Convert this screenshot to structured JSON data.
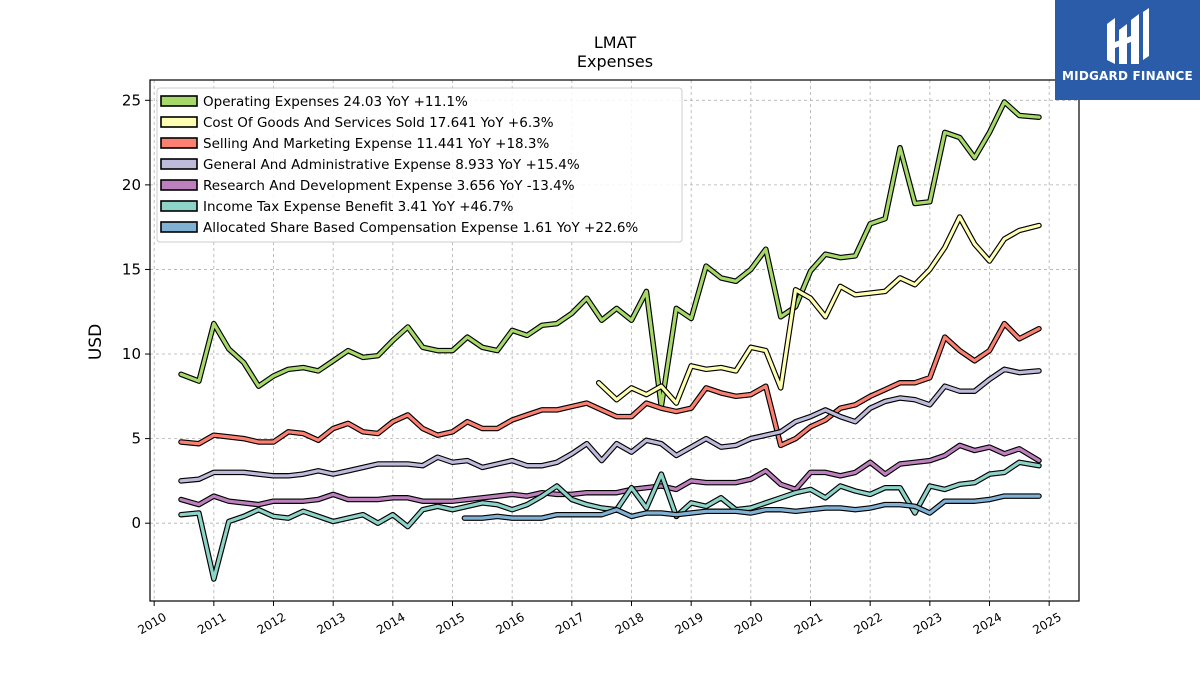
{
  "chart_data": {
    "type": "line",
    "title": "LMAT",
    "subtitle": "Expenses",
    "ylabel": "USD",
    "xlabel": "",
    "xlim": [
      2009.93,
      2025.5
    ],
    "ylim": [
      -4.6,
      26.2
    ],
    "x_ticks": [
      "2010",
      "2011",
      "2012",
      "2013",
      "2014",
      "2015",
      "2016",
      "2017",
      "2018",
      "2019",
      "2020",
      "2021",
      "2022",
      "2023",
      "2024",
      "2025"
    ],
    "y_ticks": [
      0,
      5,
      10,
      15,
      20,
      25
    ],
    "grid": true,
    "legend_position": "top-left",
    "series": [
      {
        "name": "Operating Expenses  24.03 YoY +11.1%",
        "color": "#a6d96a",
        "x": [
          2010.45,
          2010.75,
          2011.0,
          2011.25,
          2011.5,
          2011.75,
          2012.0,
          2012.25,
          2012.5,
          2012.75,
          2013.0,
          2013.25,
          2013.5,
          2013.75,
          2014.0,
          2014.25,
          2014.5,
          2014.75,
          2015.0,
          2015.25,
          2015.5,
          2015.75,
          2016.0,
          2016.25,
          2016.5,
          2016.75,
          2017.0,
          2017.25,
          2017.5,
          2017.75,
          2018.0,
          2018.25,
          2018.5,
          2018.75,
          2019.0,
          2019.25,
          2019.5,
          2019.75,
          2020.0,
          2020.25,
          2020.5,
          2020.75,
          2021.0,
          2021.25,
          2021.5,
          2021.75,
          2022.0,
          2022.25,
          2022.5,
          2022.75,
          2023.0,
          2023.25,
          2023.5,
          2023.75,
          2024.0,
          2024.25,
          2024.5,
          2024.83
        ],
        "values": [
          8.8,
          8.4,
          11.8,
          10.3,
          9.5,
          8.1,
          8.7,
          9.1,
          9.2,
          9.0,
          9.6,
          10.2,
          9.8,
          9.9,
          10.8,
          11.6,
          10.4,
          10.2,
          10.2,
          11.0,
          10.4,
          10.2,
          11.4,
          11.1,
          11.7,
          11.8,
          12.4,
          13.3,
          12.0,
          12.7,
          12.0,
          13.7,
          6.9,
          12.7,
          12.1,
          15.2,
          14.5,
          14.3,
          15.0,
          16.2,
          12.2,
          12.8,
          14.9,
          15.9,
          15.7,
          15.8,
          17.7,
          18.0,
          22.2,
          18.9,
          19.0,
          23.1,
          22.8,
          21.6,
          23.1,
          24.9,
          24.1,
          24.0
        ]
      },
      {
        "name": "Cost Of Goods And Services Sold  17.641 YoY +6.3%",
        "color": "#ffffb3",
        "x": [
          2017.45,
          2017.75,
          2018.0,
          2018.25,
          2018.5,
          2018.75,
          2019.0,
          2019.25,
          2019.5,
          2019.75,
          2020.0,
          2020.25,
          2020.5,
          2020.75,
          2021.0,
          2021.25,
          2021.5,
          2021.75,
          2022.0,
          2022.25,
          2022.5,
          2022.75,
          2023.0,
          2023.25,
          2023.5,
          2023.75,
          2024.0,
          2024.25,
          2024.5,
          2024.83
        ],
        "values": [
          8.3,
          7.3,
          8.0,
          7.6,
          8.1,
          7.1,
          9.3,
          9.1,
          9.2,
          9.0,
          10.4,
          10.2,
          8.0,
          13.8,
          13.3,
          12.2,
          14.0,
          13.5,
          13.6,
          13.7,
          14.5,
          14.1,
          15.0,
          16.3,
          18.1,
          16.5,
          15.5,
          16.8,
          17.3,
          17.6
        ]
      },
      {
        "name": "Selling And Marketing Expense  11.441 YoY +18.3%",
        "color": "#fb8072",
        "x": [
          2010.45,
          2010.75,
          2011.0,
          2011.25,
          2011.5,
          2011.75,
          2012.0,
          2012.25,
          2012.5,
          2012.75,
          2013.0,
          2013.25,
          2013.5,
          2013.75,
          2014.0,
          2014.25,
          2014.5,
          2014.75,
          2015.0,
          2015.25,
          2015.5,
          2015.75,
          2016.0,
          2016.25,
          2016.5,
          2016.75,
          2017.0,
          2017.25,
          2017.5,
          2017.75,
          2018.0,
          2018.25,
          2018.5,
          2018.75,
          2019.0,
          2019.25,
          2019.5,
          2019.75,
          2020.0,
          2020.25,
          2020.5,
          2020.75,
          2021.0,
          2021.25,
          2021.5,
          2021.75,
          2022.0,
          2022.25,
          2022.5,
          2022.75,
          2023.0,
          2023.25,
          2023.5,
          2023.75,
          2024.0,
          2024.25,
          2024.5,
          2024.83
        ],
        "values": [
          4.8,
          4.7,
          5.2,
          5.1,
          5.0,
          4.8,
          4.8,
          5.4,
          5.3,
          4.9,
          5.6,
          5.9,
          5.4,
          5.3,
          6.0,
          6.4,
          5.6,
          5.2,
          5.4,
          6.0,
          5.6,
          5.6,
          6.1,
          6.4,
          6.7,
          6.7,
          6.9,
          7.1,
          6.7,
          6.3,
          6.3,
          7.1,
          6.8,
          6.6,
          6.8,
          8.0,
          7.7,
          7.5,
          7.6,
          8.1,
          4.6,
          5.0,
          5.7,
          6.1,
          6.8,
          7.0,
          7.5,
          7.9,
          8.3,
          8.3,
          8.6,
          11.0,
          10.2,
          9.6,
          10.2,
          11.8,
          10.9,
          11.5
        ]
      },
      {
        "name": "General And Administrative Expense  8.933 YoY +15.4%",
        "color": "#bebada",
        "x": [
          2010.45,
          2010.75,
          2011.0,
          2011.25,
          2011.5,
          2011.75,
          2012.0,
          2012.25,
          2012.5,
          2012.75,
          2013.0,
          2013.25,
          2013.5,
          2013.75,
          2014.0,
          2014.25,
          2014.5,
          2014.75,
          2015.0,
          2015.25,
          2015.5,
          2015.75,
          2016.0,
          2016.25,
          2016.5,
          2016.75,
          2017.0,
          2017.25,
          2017.5,
          2017.75,
          2018.0,
          2018.25,
          2018.5,
          2018.75,
          2019.0,
          2019.25,
          2019.5,
          2019.75,
          2020.0,
          2020.25,
          2020.5,
          2020.75,
          2021.0,
          2021.25,
          2021.5,
          2021.75,
          2022.0,
          2022.25,
          2022.5,
          2022.75,
          2023.0,
          2023.25,
          2023.5,
          2023.75,
          2024.0,
          2024.25,
          2024.5,
          2024.83
        ],
        "values": [
          2.5,
          2.6,
          3.0,
          3.0,
          3.0,
          2.9,
          2.8,
          2.8,
          2.9,
          3.1,
          2.9,
          3.1,
          3.3,
          3.5,
          3.5,
          3.5,
          3.4,
          3.9,
          3.6,
          3.7,
          3.3,
          3.5,
          3.7,
          3.4,
          3.4,
          3.6,
          4.1,
          4.7,
          3.7,
          4.7,
          4.2,
          4.9,
          4.7,
          4.0,
          4.5,
          5.0,
          4.5,
          4.6,
          5.0,
          5.2,
          5.4,
          6.0,
          6.3,
          6.7,
          6.3,
          6.0,
          6.8,
          7.2,
          7.4,
          7.3,
          7.0,
          8.1,
          7.8,
          7.8,
          8.5,
          9.1,
          8.9,
          9.0
        ]
      },
      {
        "name": "Research And Development Expense  3.656 YoY -13.4%",
        "color": "#bc80bd",
        "x": [
          2010.45,
          2010.75,
          2011.0,
          2011.25,
          2011.5,
          2011.75,
          2012.0,
          2012.25,
          2012.5,
          2012.75,
          2013.0,
          2013.25,
          2013.5,
          2013.75,
          2014.0,
          2014.25,
          2014.5,
          2014.75,
          2015.0,
          2015.25,
          2015.5,
          2015.75,
          2016.0,
          2016.25,
          2016.5,
          2016.75,
          2017.0,
          2017.25,
          2017.5,
          2017.75,
          2018.0,
          2018.25,
          2018.5,
          2018.75,
          2019.0,
          2019.25,
          2019.5,
          2019.75,
          2020.0,
          2020.25,
          2020.5,
          2020.75,
          2021.0,
          2021.25,
          2021.5,
          2021.75,
          2022.0,
          2022.25,
          2022.5,
          2022.75,
          2023.0,
          2023.25,
          2023.5,
          2023.75,
          2024.0,
          2024.25,
          2024.5,
          2024.83
        ],
        "values": [
          1.4,
          1.1,
          1.6,
          1.3,
          1.2,
          1.1,
          1.3,
          1.3,
          1.3,
          1.4,
          1.7,
          1.4,
          1.4,
          1.4,
          1.5,
          1.5,
          1.3,
          1.3,
          1.3,
          1.4,
          1.5,
          1.6,
          1.7,
          1.6,
          1.8,
          1.7,
          1.7,
          1.8,
          1.8,
          1.8,
          2.0,
          2.1,
          2.2,
          2.0,
          2.5,
          2.4,
          2.4,
          2.4,
          2.6,
          3.1,
          2.3,
          2.0,
          3.0,
          3.0,
          2.8,
          3.0,
          3.6,
          2.9,
          3.5,
          3.6,
          3.7,
          4.0,
          4.6,
          4.3,
          4.5,
          4.1,
          4.4,
          3.7
        ]
      },
      {
        "name": "Income Tax Expense Benefit  3.41 YoY +46.7%",
        "color": "#8dd3c7",
        "x": [
          2010.45,
          2010.75,
          2011.0,
          2011.25,
          2011.5,
          2011.75,
          2012.0,
          2012.25,
          2012.5,
          2012.75,
          2013.0,
          2013.25,
          2013.5,
          2013.75,
          2014.0,
          2014.25,
          2014.5,
          2014.75,
          2015.0,
          2015.25,
          2015.5,
          2015.75,
          2016.0,
          2016.25,
          2016.5,
          2016.75,
          2017.0,
          2017.25,
          2017.5,
          2017.75,
          2018.0,
          2018.25,
          2018.5,
          2018.75,
          2019.0,
          2019.25,
          2019.5,
          2019.75,
          2020.0,
          2020.25,
          2020.5,
          2020.75,
          2021.0,
          2021.25,
          2021.5,
          2021.75,
          2022.0,
          2022.25,
          2022.5,
          2022.75,
          2023.0,
          2023.25,
          2023.5,
          2023.75,
          2024.0,
          2024.25,
          2024.5,
          2024.83
        ],
        "values": [
          0.5,
          0.6,
          -3.3,
          0.1,
          0.4,
          0.8,
          0.4,
          0.3,
          0.7,
          0.4,
          0.1,
          0.3,
          0.5,
          0.0,
          0.5,
          -0.2,
          0.8,
          1.0,
          0.8,
          1.0,
          1.2,
          1.1,
          0.8,
          1.1,
          1.6,
          2.2,
          1.4,
          1.1,
          0.9,
          0.8,
          2.1,
          0.9,
          2.9,
          0.4,
          1.2,
          1.0,
          1.5,
          0.8,
          0.9,
          1.2,
          1.5,
          1.8,
          2.0,
          1.5,
          2.2,
          1.9,
          1.7,
          2.1,
          2.1,
          0.6,
          2.2,
          2.0,
          2.3,
          2.4,
          2.9,
          3.0,
          3.6,
          3.4
        ]
      },
      {
        "name": "Allocated Share Based Compensation Expense  1.61 YoY +22.6%",
        "color": "#80b1d3",
        "x": [
          2015.2,
          2015.5,
          2015.75,
          2016.0,
          2016.25,
          2016.5,
          2016.75,
          2017.0,
          2017.25,
          2017.5,
          2017.75,
          2018.0,
          2018.25,
          2018.5,
          2018.75,
          2019.0,
          2019.25,
          2019.5,
          2019.75,
          2020.0,
          2020.25,
          2020.5,
          2020.75,
          2021.0,
          2021.25,
          2021.5,
          2021.75,
          2022.0,
          2022.25,
          2022.5,
          2022.75,
          2023.0,
          2023.25,
          2023.5,
          2023.75,
          2024.0,
          2024.25,
          2024.5,
          2024.83
        ],
        "values": [
          0.3,
          0.3,
          0.4,
          0.3,
          0.3,
          0.3,
          0.5,
          0.5,
          0.5,
          0.5,
          0.8,
          0.4,
          0.6,
          0.6,
          0.5,
          0.6,
          0.7,
          0.7,
          0.7,
          0.6,
          0.8,
          0.8,
          0.7,
          0.8,
          0.9,
          0.9,
          0.8,
          0.9,
          1.1,
          1.1,
          1.0,
          0.6,
          1.3,
          1.3,
          1.3,
          1.4,
          1.6,
          1.6,
          1.6
        ]
      }
    ]
  },
  "logo": {
    "name": "MIDGARD FINANCE"
  }
}
